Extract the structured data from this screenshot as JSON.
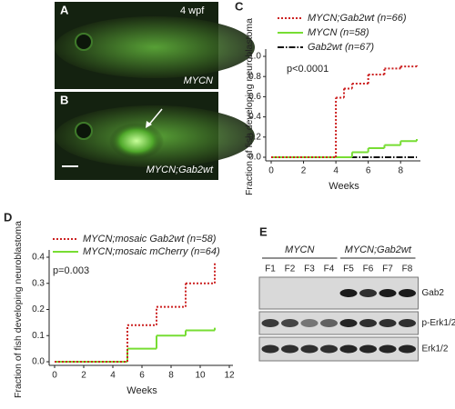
{
  "panel_a": {
    "letter": "A",
    "time": "4 wpf",
    "caption": "MYCN"
  },
  "panel_b": {
    "letter": "B",
    "caption": "MYCN;Gab2wt"
  },
  "chart_data": [
    {
      "type": "step",
      "panel_label": "C",
      "ylabel": "Fraction of fish developing neuroblastoma",
      "xlabel": "Weeks",
      "annotation": "p<0.0001",
      "xlim": [
        0,
        9
      ],
      "ylim": [
        0,
        1
      ],
      "xticks": [
        0,
        2,
        4,
        6,
        8
      ],
      "yticks": [
        {
          "value": 0,
          "label": "0.0"
        },
        0.2,
        0.4,
        0.6,
        0.8,
        {
          "value": 1,
          "label": "1.0"
        }
      ],
      "series": [
        {
          "name": "MYCN;Gab2wt (n=66)",
          "color": "#cc2222",
          "style": "dotted",
          "x": [
            0,
            4,
            4.5,
            5,
            6,
            7,
            8,
            9
          ],
          "values": [
            0,
            0.59,
            0.68,
            0.73,
            0.82,
            0.88,
            0.9,
            0.91
          ]
        },
        {
          "name": "MYCN (n=58)",
          "color": "#77dd33",
          "style": "solid",
          "x": [
            0,
            5,
            6,
            7,
            8,
            9
          ],
          "values": [
            0,
            0.05,
            0.09,
            0.12,
            0.16,
            0.18
          ]
        },
        {
          "name": "Gab2wt (n=67)",
          "color": "#111111",
          "style": "dashdot",
          "x": [
            0,
            9
          ],
          "values": [
            0,
            0
          ]
        }
      ]
    },
    {
      "type": "step",
      "panel_label": "D",
      "ylabel": "Fraction of fish developing neuroblastoma",
      "xlabel": "Weeks",
      "annotation": "p=0.003",
      "xlim": [
        0,
        12
      ],
      "ylim": [
        0,
        0.4
      ],
      "xticks": [
        0,
        2,
        4,
        6,
        8,
        10,
        12
      ],
      "yticks": [
        {
          "value": 0,
          "label": "0.0"
        },
        0.1,
        0.2,
        0.3,
        0.4
      ],
      "series": [
        {
          "name": "MYCN;mosaic Gab2wt (n=58)",
          "color": "#cc2222",
          "style": "dotted",
          "x": [
            0,
            5,
            7,
            9,
            11
          ],
          "values": [
            0,
            0.14,
            0.21,
            0.3,
            0.38
          ]
        },
        {
          "name": "MYCN;mosaic mCherry (n=64)",
          "color": "#77dd33",
          "style": "solid",
          "x": [
            0,
            5,
            7,
            9,
            11
          ],
          "values": [
            0,
            0.05,
            0.1,
            0.12,
            0.13
          ]
        }
      ]
    }
  ],
  "panel_e": {
    "letter": "E",
    "groups": [
      {
        "label": "MYCN",
        "lanes": [
          "F1",
          "F2",
          "F3",
          "F4"
        ]
      },
      {
        "label": "MYCN;Gab2wt",
        "lanes": [
          "F5",
          "F6",
          "F7",
          "F8"
        ]
      }
    ],
    "bands": [
      "Gab2",
      "p-Erk1/2",
      "Erk1/2"
    ]
  }
}
